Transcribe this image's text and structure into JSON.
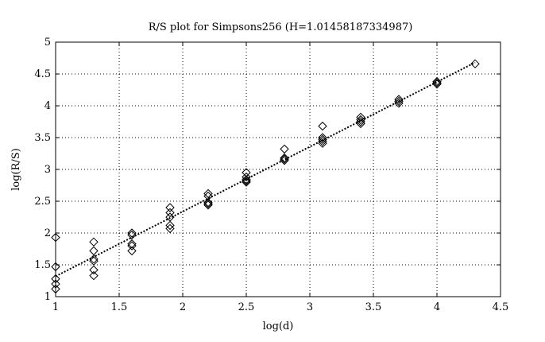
{
  "chart_data": {
    "type": "scatter",
    "title": "R/S plot for Simpsons256 (H=1.01458187334987)",
    "xlabel": "log(d)",
    "ylabel": "log(R/S)",
    "xlim": [
      1,
      4.5
    ],
    "ylim": [
      1,
      5
    ],
    "xticks": [
      1,
      1.5,
      2,
      2.5,
      3,
      3.5,
      4,
      4.5
    ],
    "yticks": [
      1,
      1.5,
      2,
      2.5,
      3,
      3.5,
      4,
      4.5,
      5
    ],
    "xtick_labels": [
      "1",
      "1.5",
      "2",
      "2.5",
      "3",
      "3.5",
      "4",
      "4.5"
    ],
    "ytick_labels": [
      "1",
      "1.5",
      "2",
      "2.5",
      "3",
      "3.5",
      "4",
      "4.5",
      "5"
    ],
    "grid": true,
    "marker": "diamond",
    "points": [
      {
        "x": 1.0,
        "y": 1.93
      },
      {
        "x": 1.0,
        "y": 1.47
      },
      {
        "x": 1.0,
        "y": 1.28
      },
      {
        "x": 1.0,
        "y": 1.2
      },
      {
        "x": 1.0,
        "y": 1.12
      },
      {
        "x": 1.3,
        "y": 1.86
      },
      {
        "x": 1.3,
        "y": 1.72
      },
      {
        "x": 1.3,
        "y": 1.59
      },
      {
        "x": 1.3,
        "y": 1.56
      },
      {
        "x": 1.3,
        "y": 1.42
      },
      {
        "x": 1.3,
        "y": 1.33
      },
      {
        "x": 1.6,
        "y": 2.0
      },
      {
        "x": 1.6,
        "y": 1.97
      },
      {
        "x": 1.6,
        "y": 1.83
      },
      {
        "x": 1.6,
        "y": 1.8
      },
      {
        "x": 1.6,
        "y": 1.72
      },
      {
        "x": 1.9,
        "y": 2.4
      },
      {
        "x": 1.9,
        "y": 2.32
      },
      {
        "x": 1.9,
        "y": 2.25
      },
      {
        "x": 1.9,
        "y": 2.12
      },
      {
        "x": 1.9,
        "y": 2.07
      },
      {
        "x": 2.2,
        "y": 2.62
      },
      {
        "x": 2.2,
        "y": 2.58
      },
      {
        "x": 2.2,
        "y": 2.48
      },
      {
        "x": 2.2,
        "y": 2.46
      },
      {
        "x": 2.2,
        "y": 2.44
      },
      {
        "x": 2.5,
        "y": 2.95
      },
      {
        "x": 2.5,
        "y": 2.88
      },
      {
        "x": 2.5,
        "y": 2.84
      },
      {
        "x": 2.5,
        "y": 2.82
      },
      {
        "x": 2.5,
        "y": 2.8
      },
      {
        "x": 2.8,
        "y": 3.32
      },
      {
        "x": 2.8,
        "y": 3.18
      },
      {
        "x": 2.8,
        "y": 3.16
      },
      {
        "x": 2.8,
        "y": 3.14
      },
      {
        "x": 3.1,
        "y": 3.68
      },
      {
        "x": 3.1,
        "y": 3.5
      },
      {
        "x": 3.1,
        "y": 3.47
      },
      {
        "x": 3.1,
        "y": 3.44
      },
      {
        "x": 3.1,
        "y": 3.41
      },
      {
        "x": 3.4,
        "y": 3.82
      },
      {
        "x": 3.4,
        "y": 3.78
      },
      {
        "x": 3.4,
        "y": 3.75
      },
      {
        "x": 3.4,
        "y": 3.72
      },
      {
        "x": 3.7,
        "y": 4.1
      },
      {
        "x": 3.7,
        "y": 4.07
      },
      {
        "x": 3.7,
        "y": 4.04
      },
      {
        "x": 4.0,
        "y": 4.38
      },
      {
        "x": 4.0,
        "y": 4.36
      },
      {
        "x": 4.0,
        "y": 4.34
      },
      {
        "x": 4.3,
        "y": 4.66
      }
    ],
    "fit_line": {
      "x": [
        1.0,
        4.3
      ],
      "y": [
        1.32,
        4.68
      ],
      "style": "dotted"
    }
  }
}
